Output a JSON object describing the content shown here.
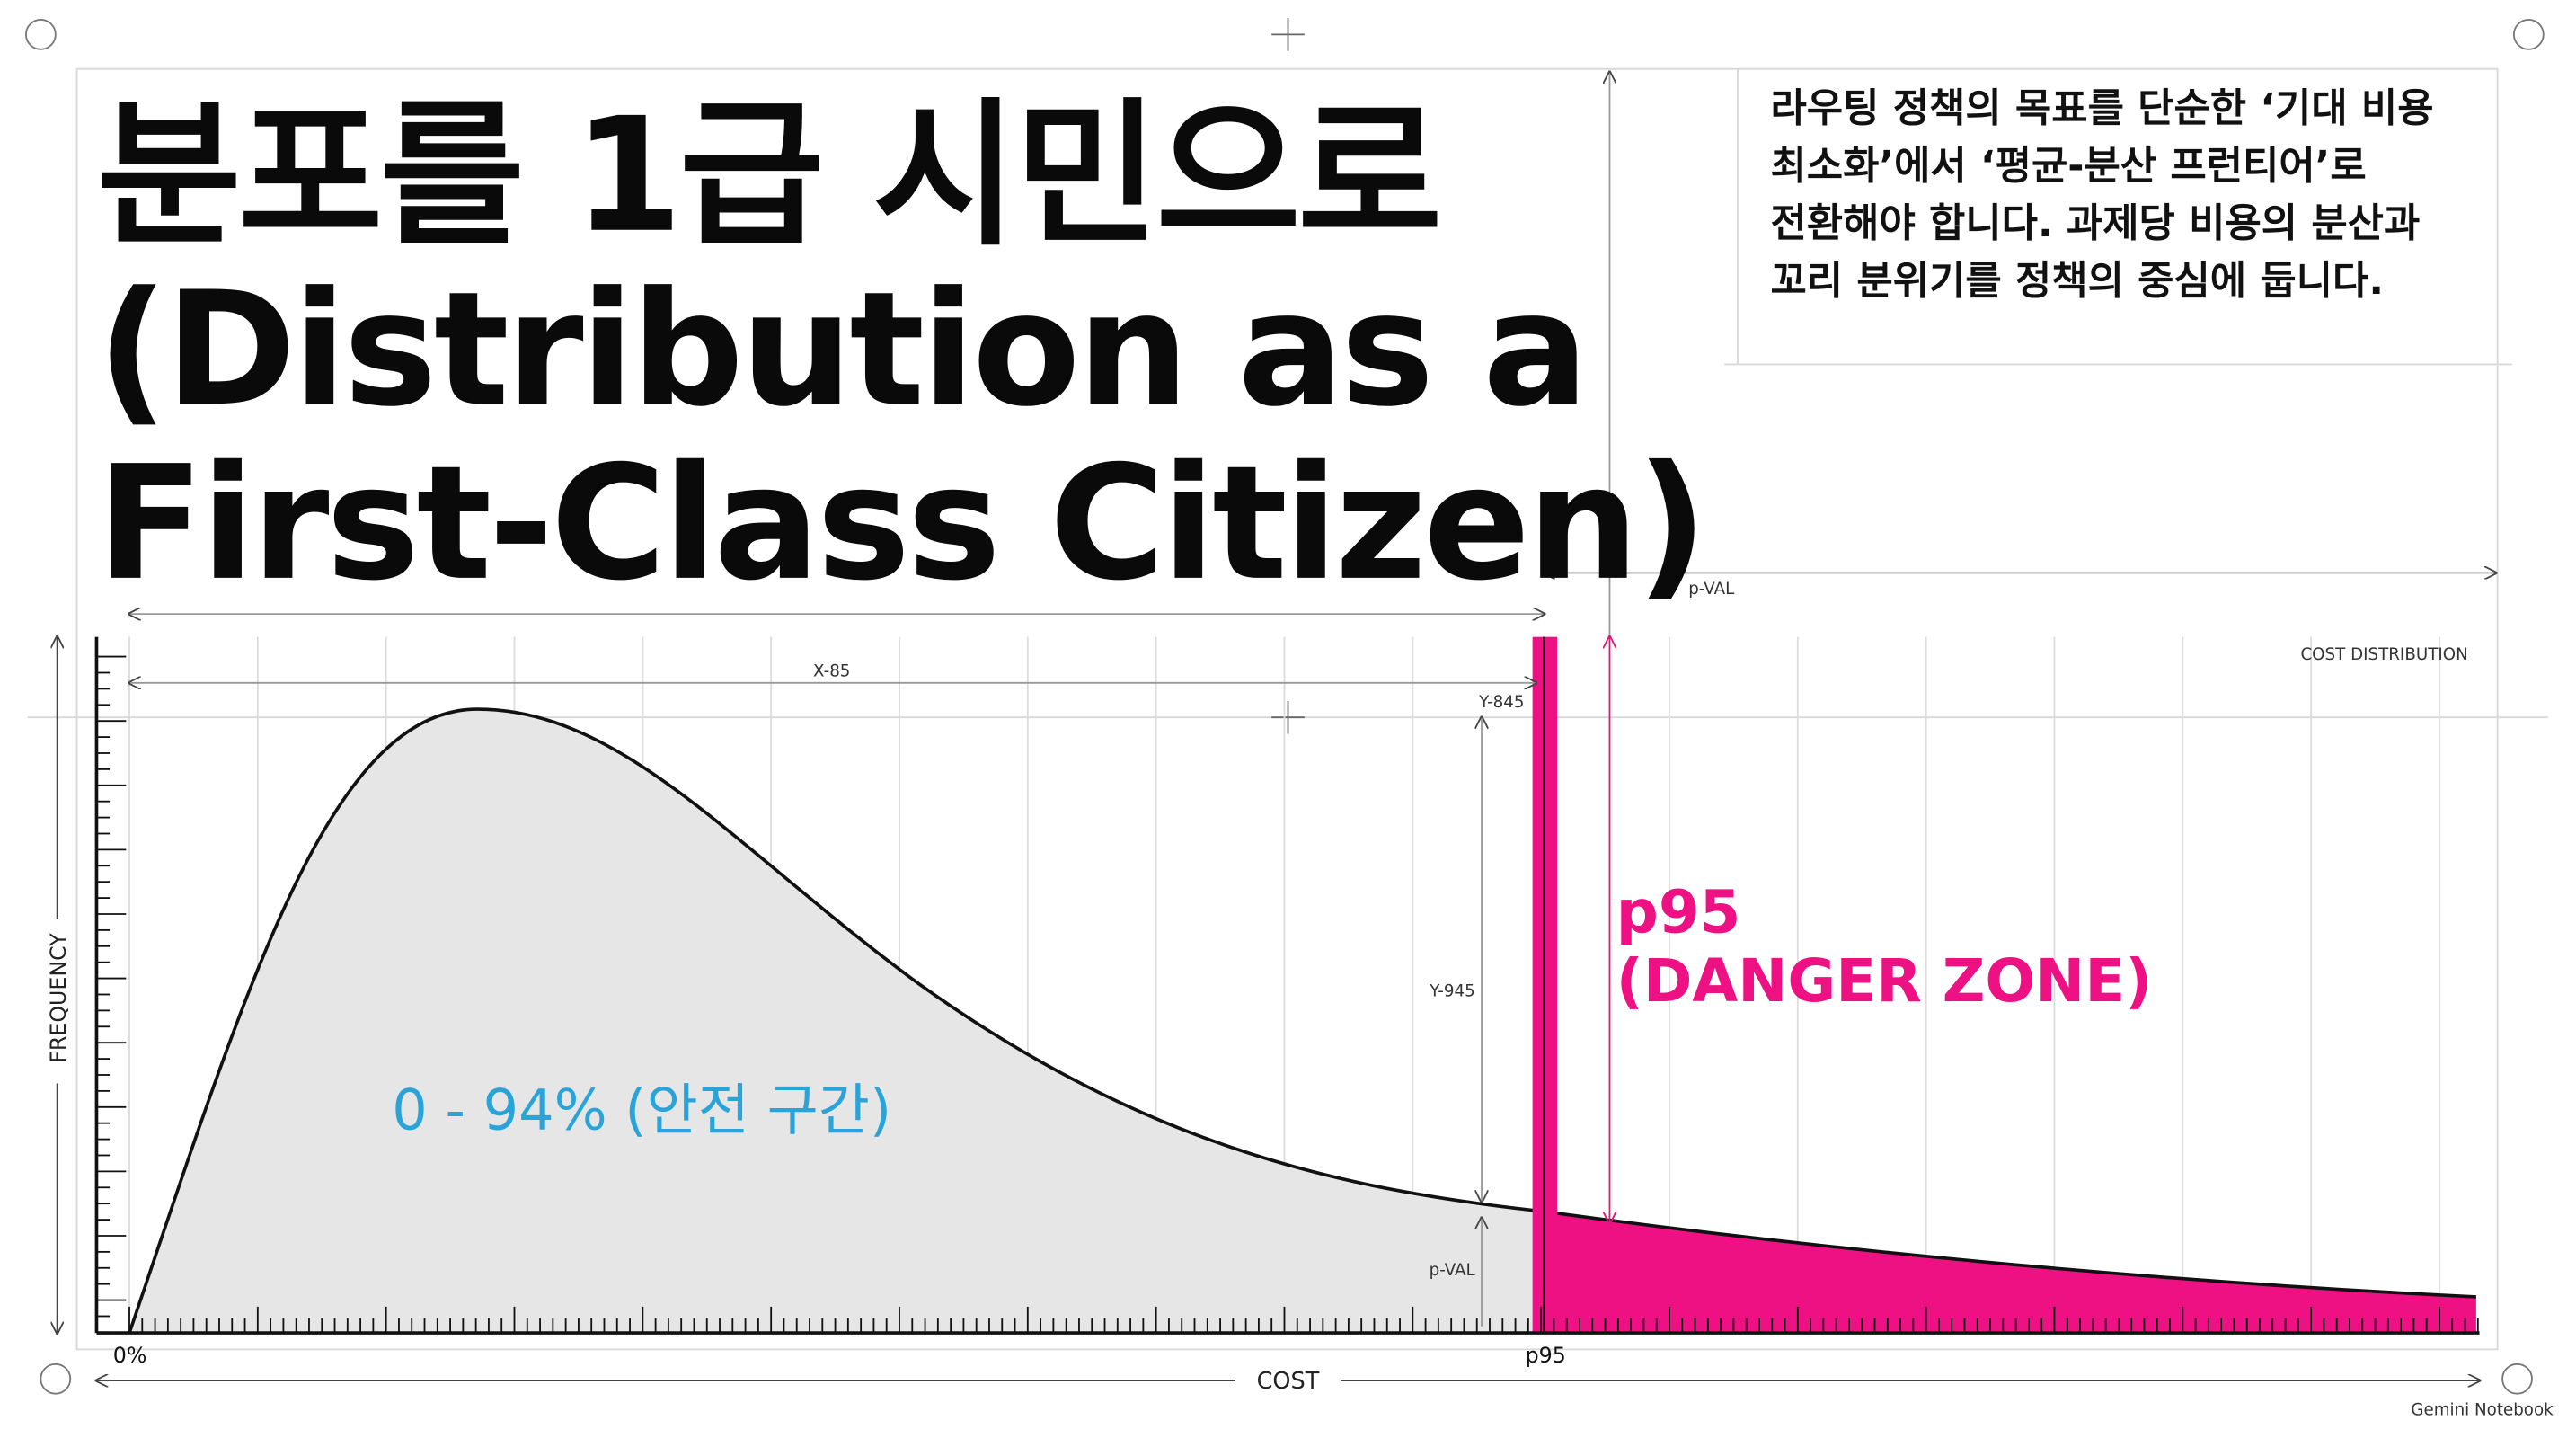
{
  "title": {
    "lines": [
      "분포를 1급 시민으로",
      "(Distribution as a",
      "First-Class Citizen)"
    ]
  },
  "description": {
    "lines": [
      "라우팅 정책의 목표를 단순한 ‘기대 비용",
      "최소화’에서 ‘평균-분산 프런티어’로",
      "전환해야 합니다. 과제당 비용의 분산과",
      "꼬리 분위기를 정책의 중심에 둡니다."
    ]
  },
  "diagram": {
    "label_top": "COST DISTRIBUTION",
    "y_axis": "FREQUENCY",
    "x_axis": "COST",
    "x_start": "0%",
    "x_marker": "p95",
    "danger": {
      "title": "p95",
      "subtitle": "(DANGER ZONE)"
    },
    "safe": "0 - 94% (안전 구간)",
    "dims": {
      "x85": "X-85",
      "y845": "Y-845",
      "y945": "Y-945",
      "pval_top": "p-VAL",
      "pval_low": "p-VAL"
    }
  },
  "footer": {
    "brand": "Gemini Notebook"
  }
}
